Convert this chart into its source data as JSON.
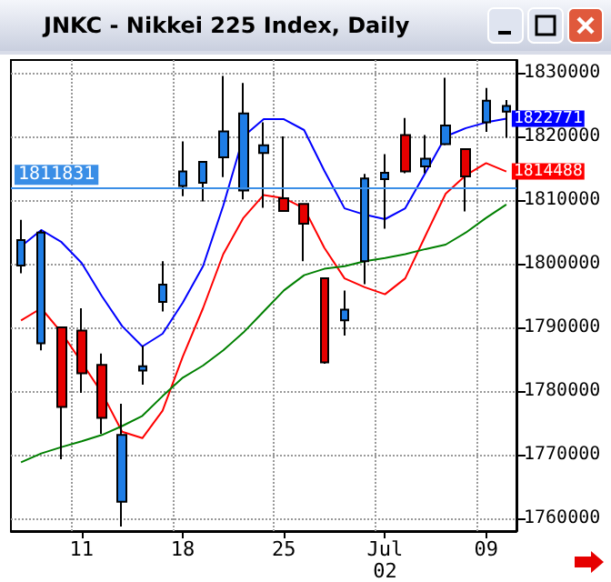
{
  "chart_data": {
    "type": "candlestick",
    "title": "JNKC - Nikkei 225 Index, Daily",
    "categories": [
      null,
      null,
      null,
      "11",
      null,
      null,
      null,
      null,
      "18",
      null,
      null,
      null,
      null,
      "25",
      null,
      null,
      null,
      null,
      "Jul\n02",
      null,
      null,
      null,
      null,
      "09",
      null
    ],
    "ohlc": [
      [
        1799700,
        1806900,
        1798500,
        1803700
      ],
      [
        1787500,
        1805300,
        1786400,
        1804900
      ],
      [
        1790000,
        1790000,
        1769300,
        1777500
      ],
      [
        1789500,
        1793000,
        1779700,
        1782800
      ],
      [
        1784100,
        1785900,
        1773300,
        1775800
      ],
      [
        1762600,
        1778000,
        1758700,
        1773100
      ],
      [
        1783200,
        1787100,
        1781000,
        1783900
      ],
      [
        1794000,
        1800400,
        1792500,
        1796700
      ],
      [
        1812200,
        1819200,
        1810600,
        1814500
      ],
      [
        1812700,
        1816000,
        1809800,
        1816000
      ],
      [
        1816700,
        1829500,
        1813600,
        1820800
      ],
      [
        1811500,
        1828400,
        1810100,
        1823600
      ],
      [
        1817400,
        1822200,
        1808800,
        1818600
      ],
      [
        1810300,
        1820000,
        1808300,
        1808300
      ],
      [
        1809400,
        1809400,
        1800400,
        1806300
      ],
      [
        1797700,
        1797700,
        1784300,
        1784500
      ],
      [
        1791100,
        1795800,
        1788700,
        1792800
      ],
      [
        1800400,
        1814100,
        1796800,
        1813400
      ],
      [
        1813300,
        1817200,
        1805500,
        1814300
      ],
      [
        1820200,
        1822900,
        1814200,
        1814500
      ],
      [
        1815300,
        1820200,
        1814200,
        1816500
      ],
      [
        1818800,
        1829200,
        1818600,
        1821700
      ],
      [
        1818000,
        1818000,
        1808200,
        1813700
      ],
      [
        1822200,
        1827600,
        1820700,
        1825600
      ],
      [
        1823900,
        1825700,
        1819800,
        1824800
      ]
    ],
    "colors": [
      "#1e7de6",
      "#1e7de6",
      "#e60000",
      "#e60000",
      "#e60000",
      "#1e7de6",
      "#1e7de6",
      "#1e7de6",
      "#1e7de6",
      "#1e7de6",
      "#1e7de6",
      "#1e7de6",
      "#1e7de6",
      "#e60000",
      "#e60000",
      "#e60000",
      "#1e7de6",
      "#1e7de6",
      "#1e7de6",
      "#e60000",
      "#1e7de6",
      "#1e7de6",
      "#e60000",
      "#1e7de6",
      "#1e7de6"
    ],
    "series": [
      {
        "type": "line",
        "color": "#0000ff",
        "values": [
          1802700,
          1805300,
          1803400,
          1800100,
          1794900,
          1790200,
          1787000,
          1789000,
          1793900,
          1799600,
          1809100,
          1820000,
          1822700,
          1822700,
          1821000,
          1814600,
          1808700,
          1807700,
          1807000,
          1808700,
          1814300,
          1820000,
          1821300,
          1822200,
          1822771
        ],
        "value_labels": [
          null,
          null,
          null,
          null,
          null,
          null,
          null,
          null,
          null,
          null,
          null,
          null,
          null,
          null,
          null,
          null,
          null,
          null,
          null,
          null,
          null,
          null,
          null,
          null,
          "1822771"
        ]
      },
      {
        "type": "line",
        "color": "#ff0000",
        "values": [
          1791100,
          1793000,
          1789200,
          1784500,
          1779700,
          1773600,
          1772600,
          1776900,
          1785400,
          1793000,
          1801500,
          1807200,
          1810800,
          1810300,
          1808700,
          1802500,
          1797700,
          1796300,
          1795200,
          1797700,
          1804400,
          1811000,
          1813900,
          1815800,
          1814488
        ],
        "value_labels": [
          null,
          null,
          null,
          null,
          null,
          null,
          null,
          null,
          null,
          null,
          null,
          null,
          null,
          null,
          null,
          null,
          null,
          null,
          null,
          null,
          null,
          null,
          null,
          null,
          "1814488"
        ]
      },
      {
        "type": "line",
        "color": "#008000",
        "values": [
          1768800,
          1770200,
          1771200,
          1772100,
          1773100,
          1774500,
          1776100,
          1779200,
          1782100,
          1784000,
          1786400,
          1789200,
          1792500,
          1795800,
          1798200,
          1799200,
          1799600,
          1800400,
          1800900,
          1801500,
          1802300,
          1803000,
          1804900,
          1807200,
          1809300
        ]
      }
    ],
    "ref_lines": [
      {
        "axis": "y",
        "value": 1811831,
        "label": "1811831",
        "color": "#3a8ee6"
      }
    ],
    "ylim": [
      1758000,
      1832000
    ],
    "yticks": [
      1760000,
      1770000,
      1780000,
      1790000,
      1800000,
      1810000,
      1820000,
      1830000
    ],
    "grid": true,
    "marker": "none",
    "line_style": "solid"
  }
}
